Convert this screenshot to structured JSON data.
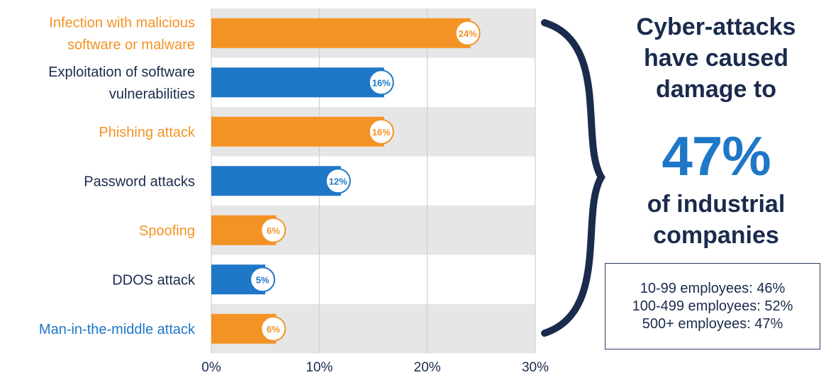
{
  "chart_data": {
    "type": "bar",
    "orientation": "horizontal",
    "categories": [
      "Infection with malicious software or malware",
      "Exploitation of software vulnerabilities",
      "Phishing attack",
      "Password attacks",
      "Spoofing",
      "DDOS attack",
      "Man-in-the-middle attack"
    ],
    "category_lines": [
      [
        "Infection with malicious",
        "software or malware"
      ],
      [
        "Exploitation of software",
        "vulnerabilities"
      ],
      [
        "Phishing attack"
      ],
      [
        "Password attacks"
      ],
      [
        "Spoofing"
      ],
      [
        "DDOS attack"
      ],
      [
        "Man-in-the-middle attack"
      ]
    ],
    "values": [
      24,
      16,
      16,
      12,
      6,
      5,
      6
    ],
    "data_labels": [
      "24%",
      "16%",
      "16%",
      "12%",
      "6%",
      "5%",
      "6%"
    ],
    "bar_colors": [
      "#f39325",
      "#1f77c8",
      "#f39325",
      "#1f77c8",
      "#f39325",
      "#1f77c8",
      "#f39325"
    ],
    "label_colors": [
      "#f39325",
      "#1b2b4d",
      "#f39325",
      "#1b2b4d",
      "#f39325",
      "#1b2b4d",
      "#1f77c8"
    ],
    "xlim": [
      0,
      30
    ],
    "x_ticks": [
      0,
      10,
      20,
      30
    ],
    "x_tick_labels": [
      "0%",
      "10%",
      "20%",
      "30%"
    ],
    "grid": true,
    "title": "",
    "xlabel": "",
    "ylabel": ""
  },
  "headline": {
    "top": [
      "Cyber-attacks",
      "have caused",
      "damage to"
    ],
    "big": "47%",
    "bottom": [
      "of industrial",
      "companies"
    ]
  },
  "stats": [
    "10-99 employees: 46%",
    "100-499 employees: 52%",
    "500+ employees: 47%"
  ],
  "colors": {
    "orange": "#f39325",
    "blue": "#1f77c8",
    "navy": "#1b2b4d",
    "band": "#e6e6e6"
  }
}
